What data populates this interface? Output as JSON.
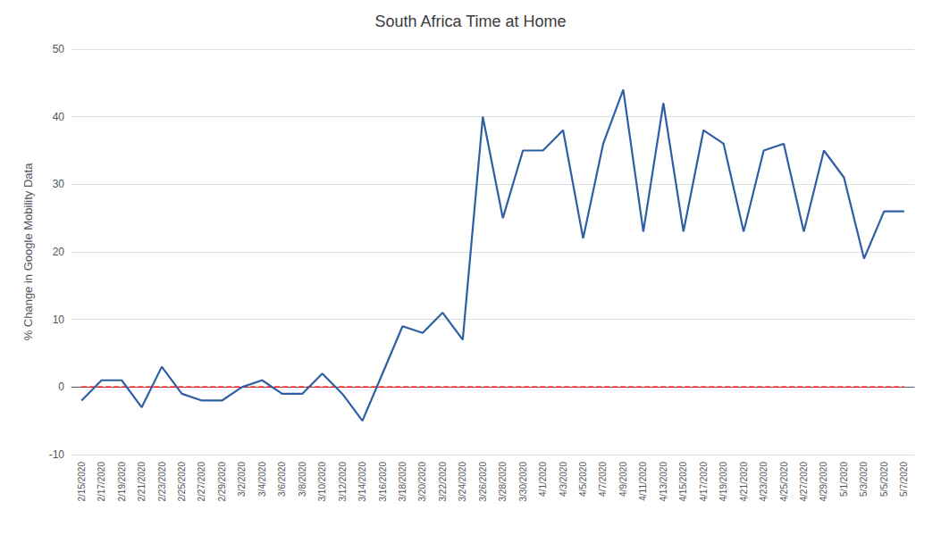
{
  "chart_data": {
    "type": "line",
    "title": "South Africa Time at Home",
    "ylabel": "% Change in Google Mobility Data",
    "categories": [
      "2/15/2020",
      "2/17/2020",
      "2/19/2020",
      "2/21/2020",
      "2/23/2020",
      "2/25/2020",
      "2/27/2020",
      "2/29/2020",
      "3/2/2020",
      "3/4/2020",
      "3/6/2020",
      "3/8/2020",
      "3/10/2020",
      "3/12/2020",
      "3/14/2020",
      "3/16/2020",
      "3/18/2020",
      "3/20/2020",
      "3/22/2020",
      "3/24/2020",
      "3/26/2020",
      "3/28/2020",
      "3/30/2020",
      "4/1/2020",
      "4/3/2020",
      "4/5/2020",
      "4/7/2020",
      "4/9/2020",
      "4/11/2020",
      "4/13/2020",
      "4/15/2020",
      "4/17/2020",
      "4/19/2020",
      "4/21/2020",
      "4/23/2020",
      "4/25/2020",
      "4/27/2020",
      "4/29/2020",
      "5/1/2020",
      "5/3/2020",
      "5/5/2020",
      "5/7/2020"
    ],
    "series": [
      {
        "type": "line",
        "color": "#2E5FA3",
        "line_style": "solid",
        "values": [
          -2,
          1,
          1,
          -3,
          3,
          -1,
          -2,
          -2,
          0,
          1,
          -1,
          -1,
          2,
          -1,
          -5,
          2,
          9,
          8,
          11,
          7,
          40,
          25,
          35,
          35,
          38,
          22,
          36,
          44,
          23,
          42,
          23,
          38,
          36,
          23,
          35,
          36,
          23,
          35,
          31,
          19,
          26,
          26
        ]
      },
      {
        "type": "line",
        "color": "#FF0000",
        "line_style": "dashed",
        "values": [
          0,
          0,
          0,
          0,
          0,
          0,
          0,
          0,
          0,
          0,
          0,
          0,
          0,
          0,
          0,
          0,
          0,
          0,
          0,
          0,
          0,
          0,
          0,
          0,
          0,
          0,
          0,
          0,
          0,
          0,
          0,
          0,
          0,
          0,
          0,
          0,
          0,
          0,
          0,
          0,
          0,
          0
        ]
      }
    ],
    "ylim": [
      -10,
      50
    ],
    "yticks": [
      -10,
      0,
      10,
      20,
      30,
      40,
      50
    ],
    "grid": true
  }
}
